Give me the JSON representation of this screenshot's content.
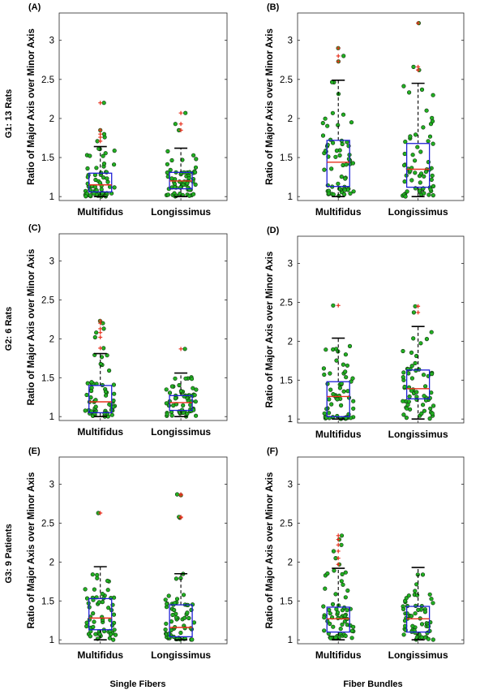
{
  "row_labels": [
    "G1: 13 Rats",
    "G2: 6 Rats",
    "G3: 9 Patients"
  ],
  "column_labels": [
    "Single Fibers",
    "Fiber Bundles"
  ],
  "colors": {
    "box": "#1f1fd6",
    "median": "#e8301e",
    "outlier": "#e8301e",
    "point_fill": "#22b022",
    "point_stroke": "#0b2a0b",
    "whisker": "#000000"
  },
  "chart_data": [
    {
      "type": "box",
      "panel": "(A)",
      "ylabel": "Ratio of Major Axis over Minor Axis",
      "ylim": [
        0.95,
        3.35
      ],
      "yticks": [
        1,
        1.5,
        2,
        2.5,
        3
      ],
      "yticklabels": [
        "1",
        "1.5",
        "2",
        "2.5",
        "3"
      ],
      "categories": [
        "Multifidus",
        "Longissimus"
      ],
      "boxes": [
        {
          "name": "Multifidus",
          "q1": 1.06,
          "median": 1.15,
          "q3": 1.3,
          "whisker_low": 1.0,
          "whisker_high": 1.64,
          "outliers": [
            1.71,
            1.76,
            1.8,
            1.85,
            2.2
          ]
        },
        {
          "name": "Longissimus",
          "q1": 1.1,
          "median": 1.2,
          "q3": 1.31,
          "whisker_low": 1.0,
          "whisker_high": 1.62,
          "outliers": [
            1.85,
            1.93,
            2.07
          ]
        }
      ]
    },
    {
      "type": "box",
      "panel": "(B)",
      "ylabel": "Ratio of Major Axis over Minor Axis",
      "ylim": [
        0.95,
        3.35
      ],
      "yticks": [
        1,
        1.5,
        2,
        2.5,
        3
      ],
      "yticklabels": [
        "1",
        "1.5",
        "2",
        "2.5",
        "3"
      ],
      "categories": [
        "Multifidus",
        "Longissimus"
      ],
      "boxes": [
        {
          "name": "Multifidus",
          "q1": 1.13,
          "median": 1.44,
          "q3": 1.72,
          "whisker_low": 1.0,
          "whisker_high": 2.49,
          "outliers": [
            2.73,
            2.8,
            2.9
          ]
        },
        {
          "name": "Longissimus",
          "q1": 1.12,
          "median": 1.35,
          "q3": 1.68,
          "whisker_low": 1.0,
          "whisker_high": 2.45,
          "outliers": [
            2.62,
            2.66,
            3.22
          ]
        }
      ]
    },
    {
      "type": "box",
      "panel": "(C)",
      "ylabel": "Ratio of Major Axis over Minor Axis",
      "ylim": [
        0.95,
        3.35
      ],
      "yticks": [
        1,
        1.5,
        2,
        2.5,
        3
      ],
      "yticklabels": [
        "1",
        "1.5",
        "2",
        "2.5",
        "3"
      ],
      "categories": [
        "Multifidus",
        "Longissimus"
      ],
      "boxes": [
        {
          "name": "Multifidus",
          "q1": 1.05,
          "median": 1.19,
          "q3": 1.4,
          "whisker_low": 1.0,
          "whisker_high": 1.81,
          "outliers": [
            1.88,
            2.02,
            2.08,
            2.13,
            2.2,
            2.23
          ]
        },
        {
          "name": "Longissimus",
          "q1": 1.08,
          "median": 1.18,
          "q3": 1.27,
          "whisker_low": 1.0,
          "whisker_high": 1.56,
          "outliers": [
            1.87
          ]
        }
      ]
    },
    {
      "type": "box",
      "panel": "(D)",
      "ylabel": "Ratio of Major Axis over Minor Axis",
      "ylim": [
        0.95,
        3.35
      ],
      "yticks": [
        1,
        1.5,
        2,
        2.5,
        3
      ],
      "yticklabels": [
        "1",
        "1.5",
        "2",
        "2.5",
        "3"
      ],
      "categories": [
        "Multifidus",
        "Longissimus"
      ],
      "boxes": [
        {
          "name": "Multifidus",
          "q1": 1.03,
          "median": 1.29,
          "q3": 1.48,
          "whisker_low": 1.0,
          "whisker_high": 2.04,
          "outliers": [
            2.46
          ]
        },
        {
          "name": "Longissimus",
          "q1": 1.26,
          "median": 1.39,
          "q3": 1.63,
          "whisker_low": 1.0,
          "whisker_high": 2.19,
          "outliers": [
            2.37,
            2.45
          ]
        }
      ]
    },
    {
      "type": "box",
      "panel": "(E)",
      "ylabel": "Ratio of Major Axis over Minor Axis",
      "ylim": [
        0.95,
        3.35
      ],
      "yticks": [
        1,
        1.5,
        2,
        2.5,
        3
      ],
      "yticklabels": [
        "1",
        "1.5",
        "2",
        "2.5",
        "3"
      ],
      "categories": [
        "Multifidus",
        "Longissimus"
      ],
      "boxes": [
        {
          "name": "Multifidus",
          "q1": 1.13,
          "median": 1.28,
          "q3": 1.53,
          "whisker_low": 1.0,
          "whisker_high": 1.94,
          "outliers": [
            2.63
          ]
        },
        {
          "name": "Longissimus",
          "q1": 1.04,
          "median": 1.16,
          "q3": 1.45,
          "whisker_low": 1.0,
          "whisker_high": 1.85,
          "outliers": [
            2.57,
            2.58,
            2.86,
            2.87
          ]
        }
      ]
    },
    {
      "type": "box",
      "panel": "(F)",
      "ylabel": "Ratio of Major Axis over Minor Axis",
      "ylim": [
        0.95,
        3.35
      ],
      "yticks": [
        1,
        1.5,
        2,
        2.5,
        3
      ],
      "yticklabels": [
        "1",
        "1.5",
        "2",
        "2.5",
        "3"
      ],
      "categories": [
        "Multifidus",
        "Longissimus"
      ],
      "boxes": [
        {
          "name": "Multifidus",
          "q1": 1.1,
          "median": 1.27,
          "q3": 1.42,
          "whisker_low": 1.0,
          "whisker_high": 1.92,
          "outliers": [
            1.97,
            2.05,
            2.14,
            2.22,
            2.29,
            2.34
          ]
        },
        {
          "name": "Longissimus",
          "q1": 1.1,
          "median": 1.27,
          "q3": 1.43,
          "whisker_low": 1.0,
          "whisker_high": 1.93,
          "outliers": []
        }
      ]
    }
  ]
}
